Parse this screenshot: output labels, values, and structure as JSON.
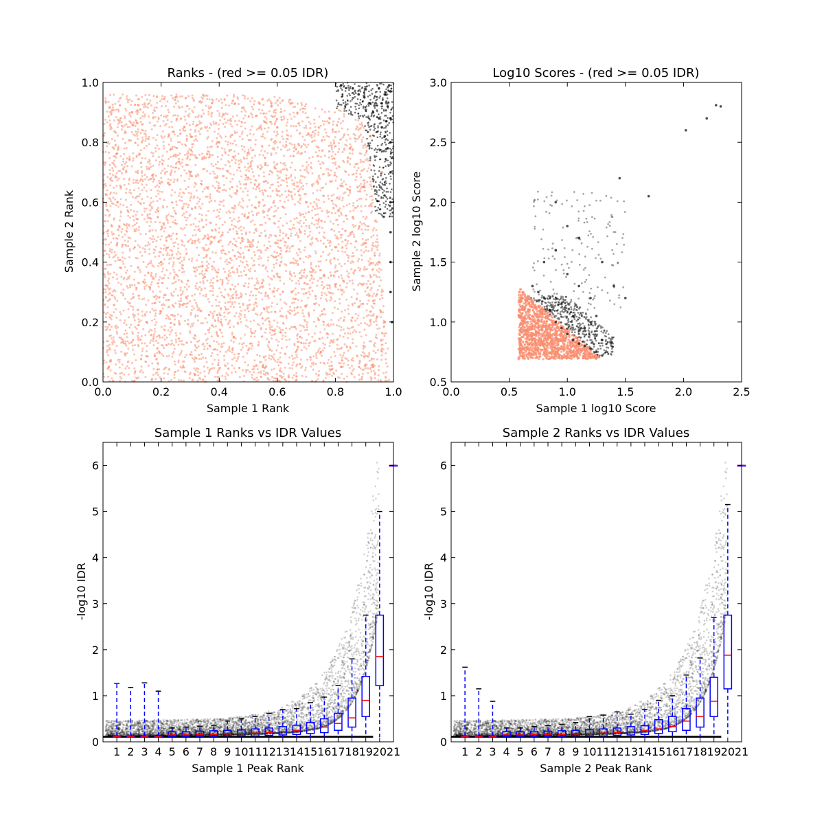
{
  "colors": {
    "pass": "#000000",
    "fail": "#fa8e6f",
    "box": "#0000ff",
    "median": "#ff0000",
    "background": "#ffffff"
  },
  "chart_data": [
    {
      "type": "scatter",
      "title": "Ranks - (red >= 0.05 IDR)",
      "xlabel": "Sample 1 Rank",
      "ylabel": "Sample 2 Rank",
      "xlim": [
        0.0,
        1.0
      ],
      "ylim": [
        0.0,
        1.0
      ],
      "xticks": [
        "0.0",
        "0.2",
        "0.4",
        "0.6",
        "0.8",
        "1.0"
      ],
      "yticks": [
        "0.0",
        "0.2",
        "0.4",
        "0.6",
        "0.8",
        "1.0"
      ],
      "grid": false,
      "legend": "none",
      "series": [
        {
          "color": "fail",
          "description_region": "most of unit square",
          "points": [
            [
              0.02,
              0.05
            ],
            [
              0.1,
              0.9
            ],
            [
              0.2,
              0.4
            ],
            [
              0.3,
              0.7
            ],
            [
              0.45,
              0.15
            ],
            [
              0.5,
              0.55
            ],
            [
              0.6,
              0.85
            ],
            [
              0.65,
              0.3
            ],
            [
              0.7,
              0.6
            ],
            [
              0.75,
              0.1
            ],
            [
              0.8,
              0.45
            ],
            [
              0.85,
              0.78
            ],
            [
              0.88,
              0.25
            ],
            [
              0.9,
              0.65
            ],
            [
              0.93,
              0.05
            ],
            [
              0.95,
              0.4
            ],
            [
              0.97,
              0.2
            ],
            [
              0.05,
              0.6
            ],
            [
              0.15,
              0.2
            ],
            [
              0.25,
              0.95
            ],
            [
              0.35,
              0.35
            ],
            [
              0.4,
              0.8
            ],
            [
              0.55,
              0.05
            ],
            [
              0.58,
              0.92
            ],
            [
              0.68,
              0.5
            ],
            [
              0.78,
              0.88
            ],
            [
              0.82,
              0.05
            ],
            [
              0.86,
              0.55
            ],
            [
              0.92,
              0.82
            ],
            [
              0.96,
              0.7
            ]
          ]
        },
        {
          "color": "pass",
          "description_region": "top-right corner",
          "points": [
            [
              0.82,
              0.99
            ],
            [
              0.86,
              0.98
            ],
            [
              0.88,
              0.96
            ],
            [
              0.9,
              0.95
            ],
            [
              0.92,
              0.93
            ],
            [
              0.93,
              0.9
            ],
            [
              0.95,
              0.88
            ],
            [
              0.96,
              0.85
            ],
            [
              0.97,
              0.82
            ],
            [
              0.98,
              0.78
            ],
            [
              0.99,
              0.7
            ],
            [
              0.99,
              0.6
            ],
            [
              0.99,
              0.5
            ],
            [
              0.99,
              0.4
            ],
            [
              0.99,
              0.3
            ],
            [
              0.995,
              0.2
            ],
            [
              0.95,
              0.98
            ],
            [
              0.97,
              0.96
            ],
            [
              0.98,
              0.92
            ],
            [
              0.99,
              0.88
            ],
            [
              0.99,
              0.97
            ],
            [
              0.985,
              0.99
            ],
            [
              0.96,
              0.93
            ],
            [
              0.975,
              0.87
            ],
            [
              0.99,
              0.8
            ]
          ]
        }
      ]
    },
    {
      "type": "scatter",
      "title": "Log10 Scores - (red >= 0.05 IDR)",
      "xlabel": "Sample 1 log10 Score",
      "ylabel": "Sample 2 log10 Score",
      "xlim": [
        0.0,
        2.5
      ],
      "ylim": [
        0.5,
        3.0
      ],
      "xticks": [
        "0.0",
        "0.5",
        "1.0",
        "1.5",
        "2.0",
        "2.5"
      ],
      "yticks": [
        "0.5",
        "1.0",
        "1.5",
        "2.0",
        "2.5",
        "3.0"
      ],
      "grid": false,
      "legend": "none",
      "series": [
        {
          "color": "fail",
          "points": [
            [
              0.58,
              0.69
            ],
            [
              0.6,
              1.2
            ],
            [
              0.62,
              1.1
            ],
            [
              0.65,
              0.9
            ],
            [
              0.7,
              0.8
            ],
            [
              0.75,
              1.0
            ],
            [
              0.8,
              0.75
            ],
            [
              0.85,
              0.9
            ],
            [
              0.9,
              0.72
            ],
            [
              0.95,
              0.8
            ],
            [
              1.0,
              0.7
            ],
            [
              1.05,
              0.75
            ],
            [
              1.1,
              0.7
            ],
            [
              1.15,
              0.72
            ],
            [
              1.2,
              0.7
            ],
            [
              1.25,
              0.7
            ],
            [
              0.6,
              0.85
            ],
            [
              0.62,
              1.25
            ],
            [
              0.64,
              1.0
            ],
            [
              0.7,
              1.05
            ],
            [
              0.78,
              0.95
            ],
            [
              0.88,
              0.85
            ],
            [
              0.92,
              0.76
            ],
            [
              0.68,
              0.72
            ],
            [
              0.72,
              0.9
            ],
            [
              0.66,
              1.15
            ]
          ]
        },
        {
          "color": "pass",
          "points": [
            [
              0.7,
              1.3
            ],
            [
              0.75,
              1.25
            ],
            [
              0.8,
              1.2
            ],
            [
              0.85,
              1.1
            ],
            [
              0.9,
              1.0
            ],
            [
              0.95,
              0.95
            ],
            [
              1.0,
              0.9
            ],
            [
              1.05,
              0.85
            ],
            [
              1.1,
              0.82
            ],
            [
              1.15,
              0.8
            ],
            [
              1.2,
              0.78
            ],
            [
              1.25,
              0.75
            ],
            [
              1.3,
              0.72
            ],
            [
              0.8,
              1.5
            ],
            [
              0.9,
              1.6
            ],
            [
              1.0,
              1.4
            ],
            [
              1.1,
              1.3
            ],
            [
              1.2,
              1.2
            ],
            [
              1.0,
              1.8
            ],
            [
              0.9,
              2.0
            ],
            [
              1.1,
              1.7
            ],
            [
              1.3,
              1.5
            ],
            [
              1.4,
              1.3
            ],
            [
              1.5,
              1.2
            ],
            [
              1.45,
              2.2
            ],
            [
              1.7,
              2.05
            ],
            [
              2.02,
              2.6
            ],
            [
              2.2,
              2.7
            ],
            [
              2.28,
              2.81
            ],
            [
              2.32,
              2.8
            ],
            [
              1.2,
              1.0
            ],
            [
              1.05,
              1.05
            ],
            [
              0.95,
              1.15
            ],
            [
              1.15,
              0.95
            ],
            [
              1.3,
              0.85
            ],
            [
              1.25,
              1.05
            ]
          ]
        }
      ]
    },
    {
      "type": "box",
      "title": "Sample 1 Ranks vs IDR Values",
      "xlabel": "Sample 1 Peak Rank",
      "ylabel": "-log10 IDR",
      "ylim": [
        0,
        6.5
      ],
      "yticks": [
        "0",
        "1",
        "2",
        "3",
        "4",
        "5",
        "6"
      ],
      "categories": [
        "1",
        "2",
        "3",
        "4",
        "5",
        "6",
        "7",
        "8",
        "9",
        "10",
        "11",
        "12",
        "13",
        "14",
        "15",
        "16",
        "17",
        "18",
        "19",
        "20",
        "21"
      ],
      "boxes": [
        {
          "q1": 0.1,
          "median": 0.11,
          "q3": 0.12,
          "whisker_low": 0.1,
          "whisker_high": 1.27
        },
        {
          "q1": 0.1,
          "median": 0.11,
          "q3": 0.12,
          "whisker_low": 0.1,
          "whisker_high": 1.18
        },
        {
          "q1": 0.1,
          "median": 0.11,
          "q3": 0.12,
          "whisker_low": 0.1,
          "whisker_high": 1.28
        },
        {
          "q1": 0.1,
          "median": 0.11,
          "q3": 0.12,
          "whisker_low": 0.1,
          "whisker_high": 1.1
        },
        {
          "q1": 0.12,
          "median": 0.15,
          "q3": 0.22,
          "whisker_low": 0.1,
          "whisker_high": 0.3
        },
        {
          "q1": 0.12,
          "median": 0.15,
          "q3": 0.22,
          "whisker_low": 0.1,
          "whisker_high": 0.32
        },
        {
          "q1": 0.12,
          "median": 0.16,
          "q3": 0.23,
          "whisker_low": 0.1,
          "whisker_high": 0.34
        },
        {
          "q1": 0.12,
          "median": 0.16,
          "q3": 0.24,
          "whisker_low": 0.1,
          "whisker_high": 0.36
        },
        {
          "q1": 0.13,
          "median": 0.17,
          "q3": 0.25,
          "whisker_low": 0.1,
          "whisker_high": 0.45
        },
        {
          "q1": 0.13,
          "median": 0.18,
          "q3": 0.26,
          "whisker_low": 0.1,
          "whisker_high": 0.5
        },
        {
          "q1": 0.13,
          "median": 0.19,
          "q3": 0.28,
          "whisker_low": 0.1,
          "whisker_high": 0.55
        },
        {
          "q1": 0.14,
          "median": 0.2,
          "q3": 0.3,
          "whisker_low": 0.1,
          "whisker_high": 0.62
        },
        {
          "q1": 0.15,
          "median": 0.22,
          "q3": 0.33,
          "whisker_low": 0.1,
          "whisker_high": 0.7
        },
        {
          "q1": 0.16,
          "median": 0.24,
          "q3": 0.36,
          "whisker_low": 0.1,
          "whisker_high": 0.72
        },
        {
          "q1": 0.18,
          "median": 0.27,
          "q3": 0.42,
          "whisker_low": 0.1,
          "whisker_high": 0.85
        },
        {
          "q1": 0.2,
          "median": 0.32,
          "q3": 0.5,
          "whisker_low": 0.1,
          "whisker_high": 0.97
        },
        {
          "q1": 0.25,
          "median": 0.4,
          "q3": 0.62,
          "whisker_low": 0.1,
          "whisker_high": 1.22
        },
        {
          "q1": 0.32,
          "median": 0.52,
          "q3": 0.95,
          "whisker_low": 0.1,
          "whisker_high": 1.8
        },
        {
          "q1": 0.55,
          "median": 0.9,
          "q3": 1.42,
          "whisker_low": 0.1,
          "whisker_high": 2.75
        },
        {
          "q1": 1.22,
          "median": 1.85,
          "q3": 2.75,
          "whisker_low": 0.1,
          "whisker_high": 5.0
        },
        {
          "q1": 6.0,
          "median": 6.0,
          "q3": 6.0,
          "whisker_low": 6.0,
          "whisker_high": 6.0
        }
      ]
    },
    {
      "type": "box",
      "title": "Sample 2 Ranks vs IDR Values",
      "xlabel": "Sample 2 Peak Rank",
      "ylabel": "-log10 IDR",
      "ylim": [
        0,
        6.5
      ],
      "yticks": [
        "0",
        "1",
        "2",
        "3",
        "4",
        "5",
        "6"
      ],
      "categories": [
        "1",
        "2",
        "3",
        "4",
        "5",
        "6",
        "7",
        "8",
        "9",
        "10",
        "11",
        "12",
        "13",
        "14",
        "15",
        "16",
        "17",
        "18",
        "19",
        "20",
        "21"
      ],
      "boxes": [
        {
          "q1": 0.1,
          "median": 0.11,
          "q3": 0.12,
          "whisker_low": 0.1,
          "whisker_high": 1.62
        },
        {
          "q1": 0.1,
          "median": 0.11,
          "q3": 0.12,
          "whisker_low": 0.1,
          "whisker_high": 1.15
        },
        {
          "q1": 0.1,
          "median": 0.11,
          "q3": 0.12,
          "whisker_low": 0.1,
          "whisker_high": 0.88
        },
        {
          "q1": 0.12,
          "median": 0.15,
          "q3": 0.22,
          "whisker_low": 0.1,
          "whisker_high": 0.3
        },
        {
          "q1": 0.12,
          "median": 0.15,
          "q3": 0.22,
          "whisker_low": 0.1,
          "whisker_high": 0.3
        },
        {
          "q1": 0.12,
          "median": 0.16,
          "q3": 0.23,
          "whisker_low": 0.1,
          "whisker_high": 0.33
        },
        {
          "q1": 0.12,
          "median": 0.16,
          "q3": 0.23,
          "whisker_low": 0.1,
          "whisker_high": 0.35
        },
        {
          "q1": 0.12,
          "median": 0.16,
          "q3": 0.24,
          "whisker_low": 0.1,
          "whisker_high": 0.38
        },
        {
          "q1": 0.13,
          "median": 0.17,
          "q3": 0.25,
          "whisker_low": 0.1,
          "whisker_high": 0.42
        },
        {
          "q1": 0.13,
          "median": 0.18,
          "q3": 0.27,
          "whisker_low": 0.1,
          "whisker_high": 0.55
        },
        {
          "q1": 0.13,
          "median": 0.19,
          "q3": 0.28,
          "whisker_low": 0.1,
          "whisker_high": 0.58
        },
        {
          "q1": 0.14,
          "median": 0.2,
          "q3": 0.3,
          "whisker_low": 0.1,
          "whisker_high": 0.65
        },
        {
          "q1": 0.15,
          "median": 0.22,
          "q3": 0.33,
          "whisker_low": 0.1,
          "whisker_high": 0.6
        },
        {
          "q1": 0.16,
          "median": 0.24,
          "q3": 0.35,
          "whisker_low": 0.1,
          "whisker_high": 0.7
        },
        {
          "q1": 0.18,
          "median": 0.28,
          "q3": 0.48,
          "whisker_low": 0.1,
          "whisker_high": 0.9
        },
        {
          "q1": 0.22,
          "median": 0.33,
          "q3": 0.55,
          "whisker_low": 0.1,
          "whisker_high": 1.0
        },
        {
          "q1": 0.25,
          "median": 0.45,
          "q3": 0.72,
          "whisker_low": 0.1,
          "whisker_high": 1.45
        },
        {
          "q1": 0.32,
          "median": 0.55,
          "q3": 0.95,
          "whisker_low": 0.1,
          "whisker_high": 1.82
        },
        {
          "q1": 0.55,
          "median": 0.88,
          "q3": 1.4,
          "whisker_low": 0.1,
          "whisker_high": 2.7
        },
        {
          "q1": 1.15,
          "median": 1.88,
          "q3": 2.75,
          "whisker_low": 0.1,
          "whisker_high": 5.15
        },
        {
          "q1": 6.0,
          "median": 6.0,
          "q3": 6.0,
          "whisker_low": 6.0,
          "whisker_high": 6.0
        }
      ]
    }
  ]
}
